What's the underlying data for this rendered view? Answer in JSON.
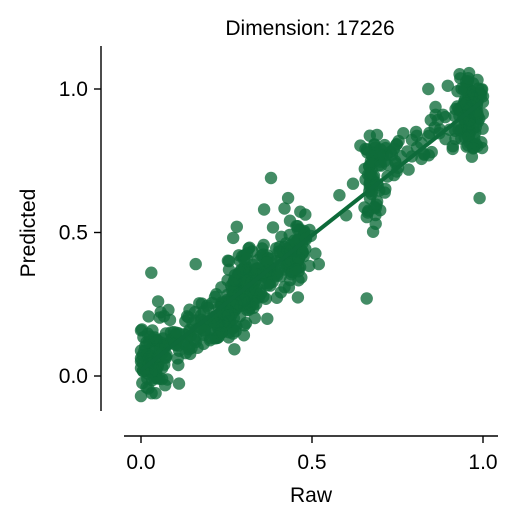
{
  "chart_data": {
    "type": "scatter",
    "title": "Dimension: 17226",
    "xlabel": "Raw",
    "ylabel": "Predicted",
    "xlim": [
      -0.05,
      1.04
    ],
    "ylim": [
      -0.12,
      1.15
    ],
    "xticks": [
      0.0,
      0.5,
      1.0
    ],
    "xtick_labels": [
      "0.0",
      "0.5",
      "1.0"
    ],
    "yticks": [
      0.0,
      0.5,
      1.0
    ],
    "ytick_labels": [
      "0.0",
      "0.5",
      "1.0"
    ],
    "grid": false,
    "legend": "none",
    "colors": {
      "point": "#0e6b3a",
      "line": "#0e6b3a"
    },
    "trend_line": {
      "x": [
        0.0,
        1.0
      ],
      "y": [
        0.02,
        0.96
      ]
    },
    "outliers": [
      {
        "x": 0.03,
        "y": 0.36
      },
      {
        "x": 0.05,
        "y": 0.26
      },
      {
        "x": 0.28,
        "y": 0.52
      },
      {
        "x": 0.38,
        "y": 0.69
      },
      {
        "x": 0.66,
        "y": 0.27
      },
      {
        "x": 0.84,
        "y": 1.0
      },
      {
        "x": 0.99,
        "y": 0.62
      },
      {
        "x": 0.92,
        "y": 0.93
      },
      {
        "x": 0.69,
        "y": 0.84
      },
      {
        "x": 0.43,
        "y": 0.62
      },
      {
        "x": 0.36,
        "y": 0.58
      },
      {
        "x": 0.52,
        "y": 0.39
      },
      {
        "x": 0.16,
        "y": 0.39
      },
      {
        "x": 0.08,
        "y": 0.23
      },
      {
        "x": 0.74,
        "y": 0.7
      },
      {
        "x": 0.62,
        "y": 0.67
      },
      {
        "x": 0.58,
        "y": 0.63
      },
      {
        "x": 0.85,
        "y": 0.78
      },
      {
        "x": 0.0,
        "y": -0.07
      },
      {
        "x": 0.6,
        "y": 0.56
      }
    ],
    "clusters": [
      {
        "cx": 0.03,
        "cy": 0.05,
        "sx": 0.025,
        "sy": 0.06,
        "n": 70
      },
      {
        "cx": 0.08,
        "cy": 0.1,
        "sx": 0.03,
        "sy": 0.05,
        "n": 30
      },
      {
        "cx": 0.14,
        "cy": 0.15,
        "sx": 0.03,
        "sy": 0.04,
        "n": 25
      },
      {
        "cx": 0.2,
        "cy": 0.2,
        "sx": 0.03,
        "sy": 0.05,
        "n": 45
      },
      {
        "cx": 0.27,
        "cy": 0.24,
        "sx": 0.03,
        "sy": 0.06,
        "n": 90
      },
      {
        "cx": 0.31,
        "cy": 0.32,
        "sx": 0.03,
        "sy": 0.06,
        "n": 70
      },
      {
        "cx": 0.38,
        "cy": 0.36,
        "sx": 0.03,
        "sy": 0.05,
        "n": 50
      },
      {
        "cx": 0.44,
        "cy": 0.43,
        "sx": 0.025,
        "sy": 0.06,
        "n": 55
      },
      {
        "cx": 0.47,
        "cy": 0.48,
        "sx": 0.015,
        "sy": 0.04,
        "n": 20
      },
      {
        "cx": 0.68,
        "cy": 0.66,
        "sx": 0.015,
        "sy": 0.08,
        "n": 45
      },
      {
        "cx": 0.72,
        "cy": 0.74,
        "sx": 0.025,
        "sy": 0.04,
        "n": 25
      },
      {
        "cx": 0.8,
        "cy": 0.79,
        "sx": 0.03,
        "sy": 0.03,
        "n": 15
      },
      {
        "cx": 0.88,
        "cy": 0.86,
        "sx": 0.03,
        "sy": 0.03,
        "n": 20
      },
      {
        "cx": 0.96,
        "cy": 0.94,
        "sx": 0.02,
        "sy": 0.06,
        "n": 80
      },
      {
        "cx": 0.97,
        "cy": 0.85,
        "sx": 0.015,
        "sy": 0.05,
        "n": 30
      }
    ]
  }
}
